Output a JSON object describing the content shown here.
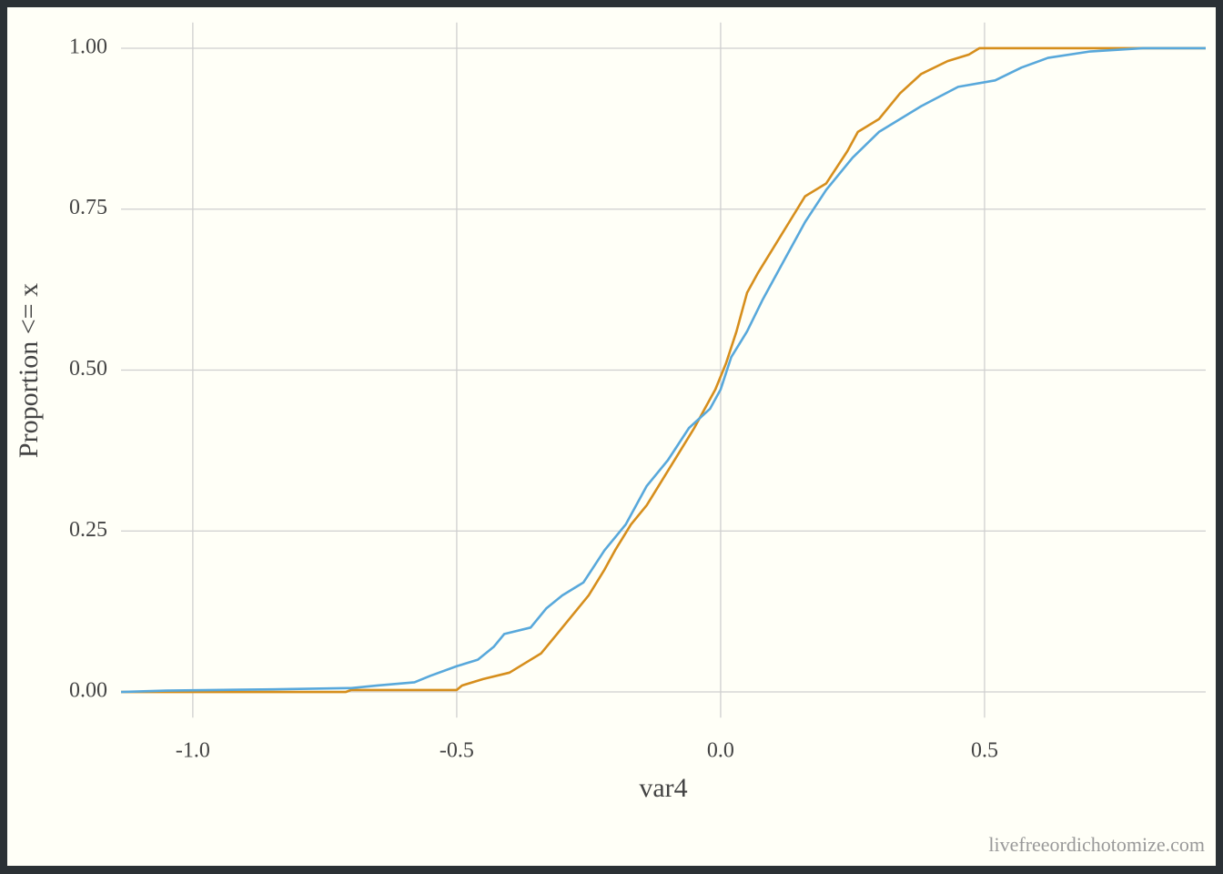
{
  "chart_data": {
    "type": "line",
    "x_label": "var4",
    "y_label": "Proportion <= x",
    "caption": "livefreeordichotomize.com",
    "xlim": [
      -1.136,
      0.919
    ],
    "ylim": [
      -0.04,
      1.04
    ],
    "xticks": [
      {
        "value": -1,
        "label": "-1.0"
      },
      -0.5,
      {
        "value": 0,
        "label": "0.0"
      },
      0.5
    ],
    "yticks": [
      {
        "value": 0,
        "label": "0.00"
      },
      0.25,
      {
        "value": 0.5,
        "label": "0.50"
      },
      0.75,
      {
        "value": 1,
        "label": "1.00"
      }
    ],
    "grid": true,
    "series": [
      {
        "color": "#d68e1c",
        "x": [
          -1.136,
          -0.71,
          -0.7,
          -0.5,
          -0.49,
          -0.45,
          -0.4,
          -0.37,
          -0.34,
          -0.31,
          -0.28,
          -0.25,
          -0.22,
          -0.2,
          -0.17,
          -0.14,
          -0.11,
          -0.08,
          -0.05,
          -0.03,
          -0.01,
          0.01,
          0.03,
          0.05,
          0.07,
          0.1,
          0.13,
          0.16,
          0.2,
          0.24,
          0.26,
          0.3,
          0.34,
          0.38,
          0.43,
          0.47,
          0.49,
          0.919
        ],
        "values": [
          0,
          0,
          0.003,
          0.003,
          0.01,
          0.02,
          0.03,
          0.045,
          0.06,
          0.09,
          0.12,
          0.15,
          0.19,
          0.22,
          0.26,
          0.29,
          0.33,
          0.37,
          0.41,
          0.44,
          0.47,
          0.51,
          0.56,
          0.62,
          0.65,
          0.69,
          0.73,
          0.77,
          0.79,
          0.84,
          0.87,
          0.89,
          0.93,
          0.96,
          0.98,
          0.99,
          1.0,
          1.0
        ]
      },
      {
        "color": "#58a8db",
        "x": [
          -1.136,
          -1.05,
          -0.85,
          -0.7,
          -0.65,
          -0.58,
          -0.55,
          -0.5,
          -0.46,
          -0.43,
          -0.41,
          -0.36,
          -0.33,
          -0.3,
          -0.26,
          -0.22,
          -0.18,
          -0.14,
          -0.1,
          -0.06,
          -0.02,
          0.0,
          0.02,
          0.05,
          0.08,
          0.12,
          0.16,
          0.2,
          0.25,
          0.3,
          0.38,
          0.45,
          0.52,
          0.57,
          0.62,
          0.7,
          0.8,
          0.919
        ],
        "values": [
          0,
          0.002,
          0.004,
          0.006,
          0.01,
          0.015,
          0.025,
          0.04,
          0.05,
          0.07,
          0.09,
          0.1,
          0.13,
          0.15,
          0.17,
          0.22,
          0.26,
          0.32,
          0.36,
          0.41,
          0.44,
          0.47,
          0.52,
          0.56,
          0.61,
          0.67,
          0.73,
          0.78,
          0.83,
          0.87,
          0.91,
          0.94,
          0.95,
          0.97,
          0.985,
          0.995,
          1.0,
          1.0
        ]
      }
    ]
  }
}
